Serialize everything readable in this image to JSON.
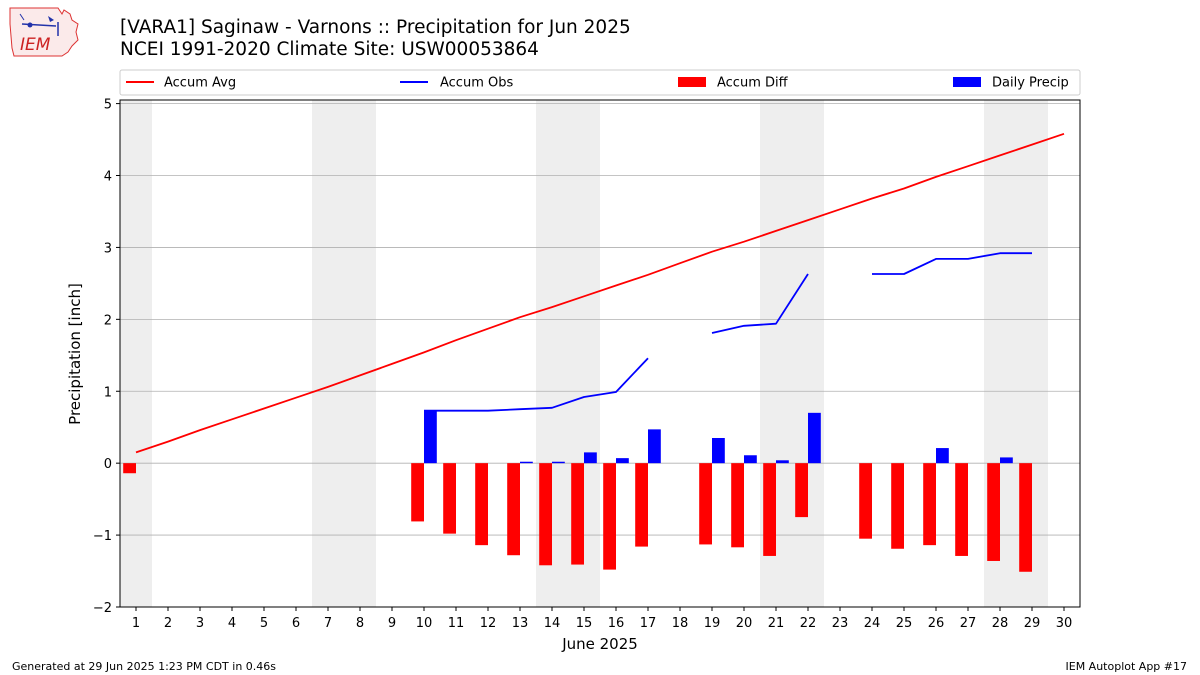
{
  "header": {
    "title_line1": "[VARA1] Saginaw - Varnons :: Precipitation for Jun 2025",
    "title_line2": "NCEI 1991-2020 Climate Site: USW00053864",
    "logo_text": "IEM"
  },
  "footer": {
    "generated": "Generated at 29 Jun 2025 1:23 PM CDT in 0.46s",
    "app": "IEM Autoplot App #17"
  },
  "colors": {
    "accum_avg": "#ff0000",
    "accum_obs": "#0000ff",
    "accum_diff": "#ff0000",
    "daily_precip": "#0000ff",
    "weekend_shade": "#eeeeee",
    "grid": "#b0b0b0"
  },
  "chart_data": {
    "type": "bar",
    "xlabel": "June 2025",
    "ylabel": "Precipitation [inch]",
    "xlim": [
      0.5,
      30.5
    ],
    "ylim": [
      -2,
      5.05
    ],
    "yticks": [
      -2,
      -1,
      0,
      1,
      2,
      3,
      4,
      5
    ],
    "ytick_labels": [
      "−2",
      "−1",
      "0",
      "1",
      "2",
      "3",
      "4",
      "5"
    ],
    "days": [
      1,
      2,
      3,
      4,
      5,
      6,
      7,
      8,
      9,
      10,
      11,
      12,
      13,
      14,
      15,
      16,
      17,
      18,
      19,
      20,
      21,
      22,
      23,
      24,
      25,
      26,
      27,
      28,
      29,
      30
    ],
    "weekend_shaded_days": [
      1,
      7,
      8,
      14,
      15,
      21,
      22,
      28,
      29
    ],
    "grid": "horizontal",
    "legend_placement": "top, above plot",
    "legend": [
      "Accum Avg",
      "Accum Obs",
      "Accum Diff",
      "Daily Precip"
    ],
    "series": [
      {
        "name": "Accum Avg",
        "kind": "line",
        "x": [
          1,
          2,
          3,
          4,
          5,
          6,
          7,
          8,
          9,
          10,
          11,
          12,
          13,
          14,
          15,
          16,
          17,
          18,
          19,
          20,
          21,
          22,
          23,
          24,
          25,
          26,
          27,
          28,
          29,
          30
        ],
        "values": [
          0.15,
          0.3,
          0.46,
          0.61,
          0.76,
          0.91,
          1.06,
          1.22,
          1.38,
          1.54,
          1.71,
          1.87,
          2.03,
          2.17,
          2.32,
          2.47,
          2.62,
          2.78,
          2.94,
          3.08,
          3.23,
          3.38,
          3.53,
          3.68,
          3.82,
          3.98,
          4.13,
          4.28,
          4.43,
          4.58
        ]
      },
      {
        "name": "Accum Obs",
        "kind": "line",
        "x": [
          10,
          11,
          12,
          13,
          14,
          15,
          16,
          17,
          18,
          19,
          20,
          21,
          22,
          23,
          24,
          25,
          26,
          27,
          28,
          29
        ],
        "values": [
          0.73,
          0.73,
          0.73,
          0.75,
          0.77,
          0.92,
          0.99,
          1.46,
          null,
          1.81,
          1.91,
          1.94,
          2.63,
          null,
          2.63,
          2.63,
          2.84,
          2.84,
          2.92,
          2.92
        ]
      },
      {
        "name": "Accum Diff",
        "kind": "bar",
        "x": [
          1,
          10,
          11,
          12,
          13,
          14,
          15,
          16,
          17,
          19,
          20,
          21,
          22,
          24,
          25,
          26,
          27,
          28,
          29
        ],
        "values": [
          -0.14,
          -0.81,
          -0.98,
          -1.14,
          -1.28,
          -1.42,
          -1.41,
          -1.48,
          -1.16,
          -1.13,
          -1.17,
          -1.29,
          -0.75,
          -1.05,
          -1.19,
          -1.14,
          -1.29,
          -1.36,
          -1.51
        ]
      },
      {
        "name": "Daily Precip",
        "kind": "bar",
        "x": [
          10,
          13,
          14,
          15,
          16,
          17,
          19,
          20,
          21,
          22,
          26,
          28
        ],
        "values": [
          0.73,
          0.02,
          0.02,
          0.15,
          0.07,
          0.47,
          0.35,
          0.11,
          0.04,
          0.7,
          0.21,
          0.08
        ]
      }
    ]
  }
}
